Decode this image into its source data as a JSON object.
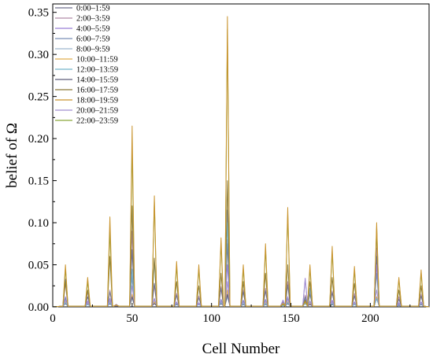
{
  "chart_data": {
    "type": "line",
    "xlabel": "Cell Number",
    "ylabel": "belief of Ω",
    "xlim": [
      0,
      237
    ],
    "ylim": [
      0,
      0.36
    ],
    "xticks": [
      0,
      50,
      100,
      150,
      200
    ],
    "yticks": [
      0.0,
      0.05,
      0.1,
      0.15,
      0.2,
      0.25,
      0.3,
      0.35
    ],
    "grid": false,
    "legend_position": "top-left",
    "peak_cells": [
      8,
      22,
      36,
      50,
      64,
      78,
      92,
      106,
      110,
      120,
      134,
      148,
      162,
      176,
      190,
      204,
      218,
      232
    ],
    "minor_peak_cells": [
      40,
      145,
      159
    ],
    "series": [
      {
        "name": "0:00–1:59",
        "color": "#6f6f8f",
        "peaks": [
          0.033,
          0.012,
          0.018,
          0.068,
          0.028,
          0.014,
          0.011,
          0.022,
          0.075,
          0.018,
          0.019,
          0.026,
          0.015,
          0.017,
          0.013,
          0.06,
          0.009,
          0.013
        ],
        "minor_peaks": [
          0.002,
          0.006,
          0.012
        ]
      },
      {
        "name": "2:00–3:59",
        "color": "#b08aa6",
        "peaks": [
          0.028,
          0.018,
          0.02,
          0.09,
          0.026,
          0.016,
          0.013,
          0.024,
          0.08,
          0.02,
          0.022,
          0.03,
          0.018,
          0.019,
          0.016,
          0.07,
          0.012,
          0.015
        ],
        "minor_peaks": [
          0.003,
          0.004,
          0.014
        ]
      },
      {
        "name": "4:00–5:59",
        "color": "#9a7fd6",
        "peaks": [
          0.012,
          0.007,
          0.01,
          0.04,
          0.01,
          0.006,
          0.005,
          0.009,
          0.05,
          0.008,
          0.009,
          0.012,
          0.007,
          0.008,
          0.006,
          0.05,
          0.005,
          0.006
        ],
        "minor_peaks": [
          0.002,
          0.008,
          0.034
        ]
      },
      {
        "name": "6:00–7:59",
        "color": "#7a8fb8",
        "peaks": [
          0.01,
          0.005,
          0.008,
          0.035,
          0.009,
          0.005,
          0.004,
          0.008,
          0.115,
          0.007,
          0.008,
          0.01,
          0.006,
          0.006,
          0.005,
          0.04,
          0.004,
          0.005
        ],
        "minor_peaks": [
          0.001,
          0.003,
          0.01
        ]
      },
      {
        "name": "8:00–9:59",
        "color": "#9db8cf",
        "peaks": [
          0.004,
          0.003,
          0.004,
          0.01,
          0.004,
          0.003,
          0.003,
          0.004,
          0.012,
          0.003,
          0.004,
          0.005,
          0.003,
          0.003,
          0.003,
          0.01,
          0.002,
          0.003
        ],
        "minor_peaks": [
          0.001,
          0.002,
          0.004
        ]
      },
      {
        "name": "10:00–11:59",
        "color": "#e1ae4e",
        "peaks": [
          0.006,
          0.004,
          0.006,
          0.015,
          0.006,
          0.004,
          0.003,
          0.005,
          0.02,
          0.004,
          0.005,
          0.006,
          0.004,
          0.004,
          0.003,
          0.012,
          0.003,
          0.004
        ],
        "minor_peaks": [
          0.001,
          0.002,
          0.005
        ]
      },
      {
        "name": "12:00–13:59",
        "color": "#75b4cb",
        "peaks": [
          0.005,
          0.003,
          0.005,
          0.045,
          0.055,
          0.004,
          0.003,
          0.005,
          0.1,
          0.004,
          0.004,
          0.005,
          0.022,
          0.004,
          0.003,
          0.01,
          0.003,
          0.004
        ],
        "minor_peaks": [
          0.001,
          0.002,
          0.004
        ]
      },
      {
        "name": "14:00–15:59",
        "color": "#5e5e7a",
        "peaks": [
          0.004,
          0.003,
          0.004,
          0.012,
          0.004,
          0.003,
          0.003,
          0.004,
          0.015,
          0.003,
          0.003,
          0.004,
          0.003,
          0.003,
          0.003,
          0.01,
          0.002,
          0.003
        ],
        "minor_peaks": [
          0.001,
          0.002,
          0.004
        ]
      },
      {
        "name": "16:00–17:59",
        "color": "#8c7b3a",
        "peaks": [
          0.03,
          0.02,
          0.06,
          0.12,
          0.058,
          0.03,
          0.025,
          0.04,
          0.15,
          0.03,
          0.04,
          0.05,
          0.03,
          0.035,
          0.028,
          0.09,
          0.02,
          0.025
        ],
        "minor_peaks": [
          0.002,
          0.003,
          0.008
        ]
      },
      {
        "name": "18:00–19:59",
        "color": "#c9942e",
        "peaks": [
          0.05,
          0.035,
          0.107,
          0.215,
          0.132,
          0.054,
          0.05,
          0.082,
          0.345,
          0.05,
          0.075,
          0.118,
          0.05,
          0.072,
          0.048,
          0.1,
          0.035,
          0.044
        ],
        "minor_peaks": [
          0.002,
          0.004,
          0.006
        ]
      },
      {
        "name": "20:00–21:59",
        "color": "#a18fd0",
        "peaks": [
          0.008,
          0.005,
          0.008,
          0.025,
          0.009,
          0.005,
          0.004,
          0.007,
          0.03,
          0.006,
          0.007,
          0.009,
          0.006,
          0.006,
          0.005,
          0.02,
          0.004,
          0.005
        ],
        "minor_peaks": [
          0.001,
          0.007,
          0.032
        ]
      },
      {
        "name": "22:00–23:59",
        "color": "#8aa73a",
        "peaks": [
          0.045,
          0.03,
          0.09,
          0.19,
          0.125,
          0.048,
          0.045,
          0.075,
          0.33,
          0.045,
          0.068,
          0.11,
          0.045,
          0.065,
          0.043,
          0.095,
          0.032,
          0.04
        ],
        "minor_peaks": [
          0.002,
          0.003,
          0.006
        ]
      }
    ]
  }
}
